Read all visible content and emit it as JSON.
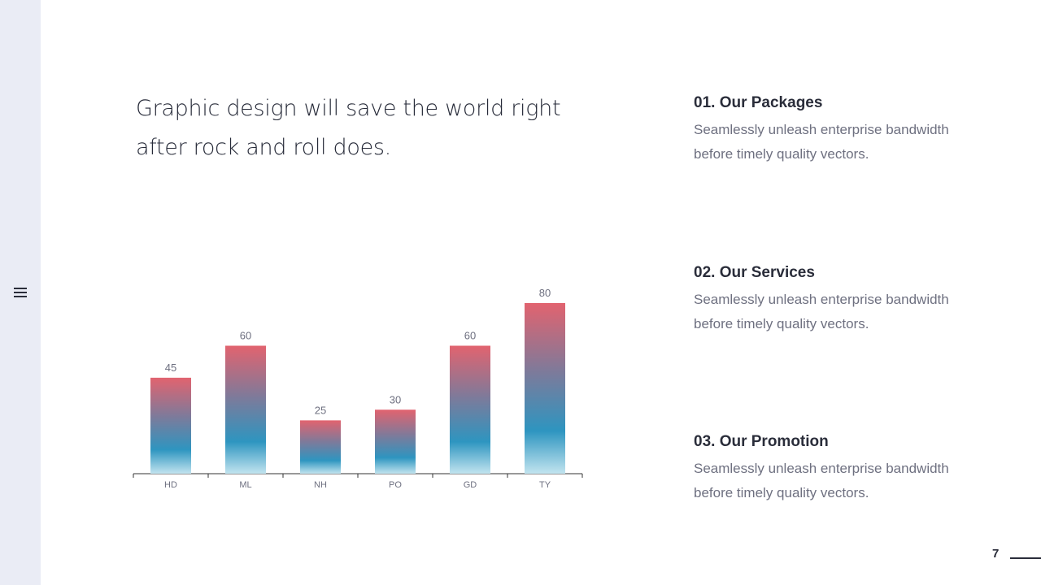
{
  "quote": {
    "line1": "Graphic design will save the world right",
    "line2": "after rock and roll does."
  },
  "items": [
    {
      "title": "01. Our Packages",
      "body": "Seamlessly unleash enterprise bandwidth before timely quality vectors."
    },
    {
      "title": "02. Our Services",
      "body": "Seamlessly unleash enterprise bandwidth before timely quality vectors."
    },
    {
      "title": "03. Our Promotion",
      "body": "Seamlessly unleash enterprise bandwidth before timely quality vectors."
    }
  ],
  "page_number": "7",
  "colors": {
    "bar_top": "#e2636f",
    "bar_mid": "#2e95c0",
    "bar_bottom": "#c2e4ef"
  },
  "chart_data": {
    "type": "bar",
    "categories": [
      "HD",
      "ML",
      "NH",
      "PO",
      "GD",
      "TY"
    ],
    "values": [
      45,
      60,
      25,
      30,
      60,
      80
    ],
    "data_labels": [
      "45",
      "60",
      "25",
      "30",
      "60",
      "80"
    ],
    "title": "",
    "xlabel": "",
    "ylabel": "",
    "ylim": [
      0,
      80
    ],
    "grid": false
  }
}
